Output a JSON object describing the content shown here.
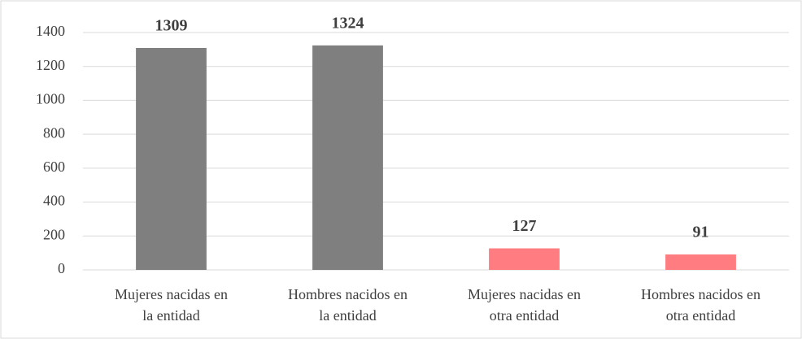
{
  "chart_data": {
    "type": "bar",
    "categories": [
      "Mujeres nacidas en la entidad",
      "Hombres nacidos en la entidad",
      "Mujeres nacidas en otra entidad",
      "Hombres nacidos en otra entidad"
    ],
    "values": [
      1309,
      1324,
      127,
      91
    ],
    "colors": [
      "#7f7f7f",
      "#7f7f7f",
      "#ff7c80",
      "#ff7c80"
    ],
    "ylim": [
      0,
      1400
    ],
    "yticks": [
      0,
      200,
      400,
      600,
      800,
      1000,
      1200,
      1400
    ],
    "grid": true
  }
}
